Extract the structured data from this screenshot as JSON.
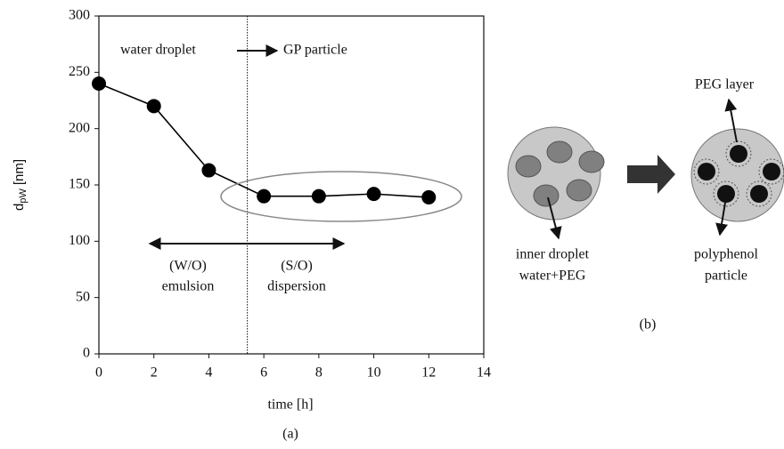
{
  "chart_data": {
    "type": "line",
    "x_label": "time [h]",
    "y_label": {
      "main": "d",
      "sub": "pW",
      "unit": "[nm]"
    },
    "x": [
      0,
      2,
      4,
      6,
      8,
      10,
      12
    ],
    "series": [
      {
        "color": "#000000",
        "values": [
          240,
          220,
          163,
          140,
          140,
          142,
          139
        ]
      }
    ],
    "xlim": [
      0,
      14
    ],
    "xticks": [
      0,
      2,
      4,
      6,
      8,
      10,
      12,
      14
    ],
    "ylim": [
      0,
      300
    ],
    "yticks": [
      0,
      50,
      100,
      150,
      200,
      250,
      300
    ],
    "divider_x": 5.4,
    "annotations": {
      "left_top": "water droplet",
      "right_top": "GP particle",
      "left_1": "(W/O)",
      "left_2": "emulsion",
      "right_1": "(S/O)",
      "right_2": "dispersion"
    },
    "caption": "(a)"
  },
  "diagram": {
    "inner_droplet": [
      "inner droplet",
      "water+PEG"
    ],
    "peg_layer": "PEG layer",
    "polyphenol": [
      "polyphenol",
      "particle"
    ],
    "caption": "(b)"
  }
}
